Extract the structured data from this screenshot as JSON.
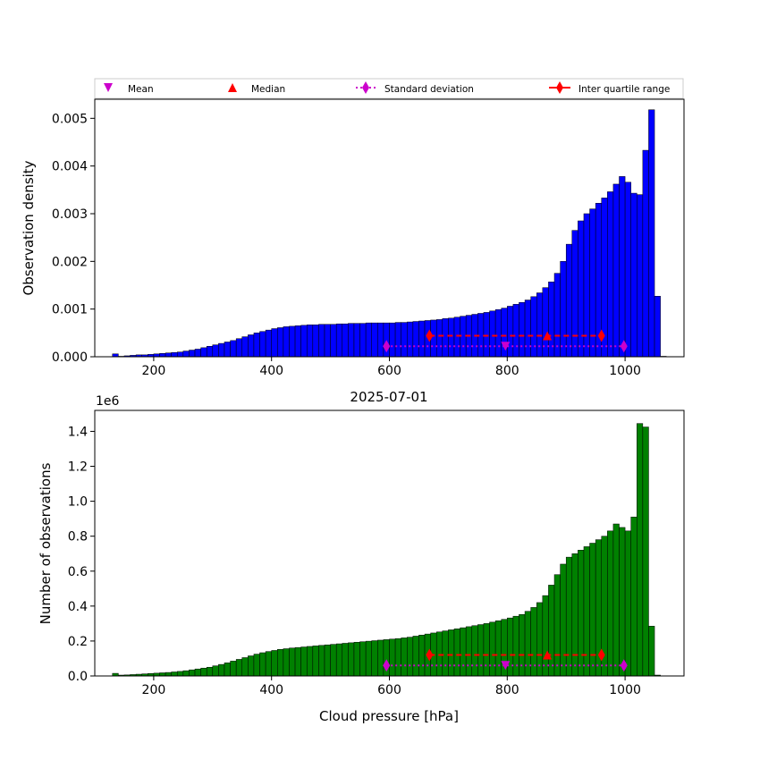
{
  "legend": {
    "mean": "Mean",
    "median": "Median",
    "std": "Standard deviation",
    "iqr": "Inter quartile range"
  },
  "colors": {
    "top_bars": "#0000ff",
    "bottom_bars": "#008000",
    "stats_primary": "#cc00cc",
    "stats_secondary": "#ff0000"
  },
  "chart_data": [
    {
      "type": "bar",
      "id": "density",
      "title": "",
      "xlabel": "",
      "ylabel": "Observation density",
      "xlim": [
        100,
        1100
      ],
      "ylim": [
        0,
        0.0054
      ],
      "xticks": [
        200,
        400,
        600,
        800,
        1000
      ],
      "yticks": [
        0.0,
        0.001,
        0.002,
        0.003,
        0.004,
        0.005
      ],
      "ytick_labels": [
        "0.000",
        "0.001",
        "0.002",
        "0.003",
        "0.004",
        "0.005"
      ],
      "bin_start": 130,
      "bin_width": 10,
      "values": [
        6e-05,
        1e-05,
        2e-05,
        3e-05,
        4e-05,
        4e-05,
        5e-05,
        6e-05,
        7e-05,
        8e-05,
        9e-05,
        0.0001,
        0.00012,
        0.00014,
        0.00016,
        0.00019,
        0.00022,
        0.00025,
        0.00028,
        0.00031,
        0.00034,
        0.00038,
        0.00042,
        0.00046,
        0.0005,
        0.00053,
        0.00056,
        0.00059,
        0.00061,
        0.00063,
        0.00064,
        0.00065,
        0.00066,
        0.00067,
        0.00067,
        0.00068,
        0.00068,
        0.00068,
        0.00069,
        0.00069,
        0.0007,
        0.0007,
        0.0007,
        0.00071,
        0.00071,
        0.00071,
        0.00071,
        0.00071,
        0.00072,
        0.00072,
        0.00073,
        0.00074,
        0.00075,
        0.00076,
        0.00077,
        0.00078,
        0.0008,
        0.00081,
        0.00083,
        0.00085,
        0.00087,
        0.00089,
        0.00091,
        0.00093,
        0.00096,
        0.00099,
        0.00102,
        0.00106,
        0.0011,
        0.00114,
        0.00119,
        0.00126,
        0.00134,
        0.00145,
        0.00157,
        0.00175,
        0.002,
        0.00236,
        0.00265,
        0.00285,
        0.003,
        0.0031,
        0.00322,
        0.00333,
        0.00346,
        0.00362,
        0.00378,
        0.00366,
        0.00343,
        0.0034,
        0.00433,
        0.00518,
        0.00127,
        1e-05
      ],
      "stats": {
        "mean": 797,
        "median": 868,
        "std_range": [
          595,
          998
        ],
        "iqr_range": [
          668,
          960
        ],
        "stat_y": 0.00022,
        "iqr_y": 0.00044
      }
    },
    {
      "type": "bar",
      "id": "counts",
      "title": "2025-07-01",
      "xlabel": "Cloud pressure [hPa]",
      "ylabel": "Number of observations",
      "offset_label": "1e6",
      "xlim": [
        100,
        1100
      ],
      "ylim": [
        0,
        1.52
      ],
      "xticks": [
        200,
        400,
        600,
        800,
        1000
      ],
      "yticks": [
        0.0,
        0.2,
        0.4,
        0.6,
        0.8,
        1.0,
        1.2,
        1.4
      ],
      "ytick_labels": [
        "0.0",
        "0.2",
        "0.4",
        "0.6",
        "0.8",
        "1.0",
        "1.2",
        "1.4"
      ],
      "bin_start": 130,
      "bin_width": 10,
      "values": [
        0.015,
        0.005,
        0.006,
        0.008,
        0.01,
        0.012,
        0.014,
        0.016,
        0.018,
        0.02,
        0.023,
        0.026,
        0.03,
        0.035,
        0.04,
        0.045,
        0.05,
        0.058,
        0.066,
        0.075,
        0.085,
        0.095,
        0.105,
        0.115,
        0.125,
        0.133,
        0.14,
        0.146,
        0.152,
        0.156,
        0.16,
        0.163,
        0.166,
        0.169,
        0.172,
        0.175,
        0.178,
        0.181,
        0.184,
        0.187,
        0.19,
        0.193,
        0.196,
        0.199,
        0.202,
        0.205,
        0.208,
        0.211,
        0.214,
        0.218,
        0.222,
        0.228,
        0.234,
        0.24,
        0.246,
        0.252,
        0.258,
        0.264,
        0.27,
        0.276,
        0.282,
        0.288,
        0.294,
        0.3,
        0.308,
        0.316,
        0.324,
        0.332,
        0.342,
        0.352,
        0.37,
        0.392,
        0.42,
        0.46,
        0.52,
        0.58,
        0.64,
        0.68,
        0.7,
        0.72,
        0.74,
        0.76,
        0.78,
        0.8,
        0.83,
        0.87,
        0.85,
        0.83,
        0.91,
        1.445,
        1.425,
        0.285,
        0.005
      ],
      "stats": {
        "mean": 797,
        "median": 868,
        "std_range": [
          595,
          998
        ],
        "iqr_range": [
          668,
          960
        ],
        "stat_y": 0.06,
        "iqr_y": 0.12
      }
    }
  ]
}
